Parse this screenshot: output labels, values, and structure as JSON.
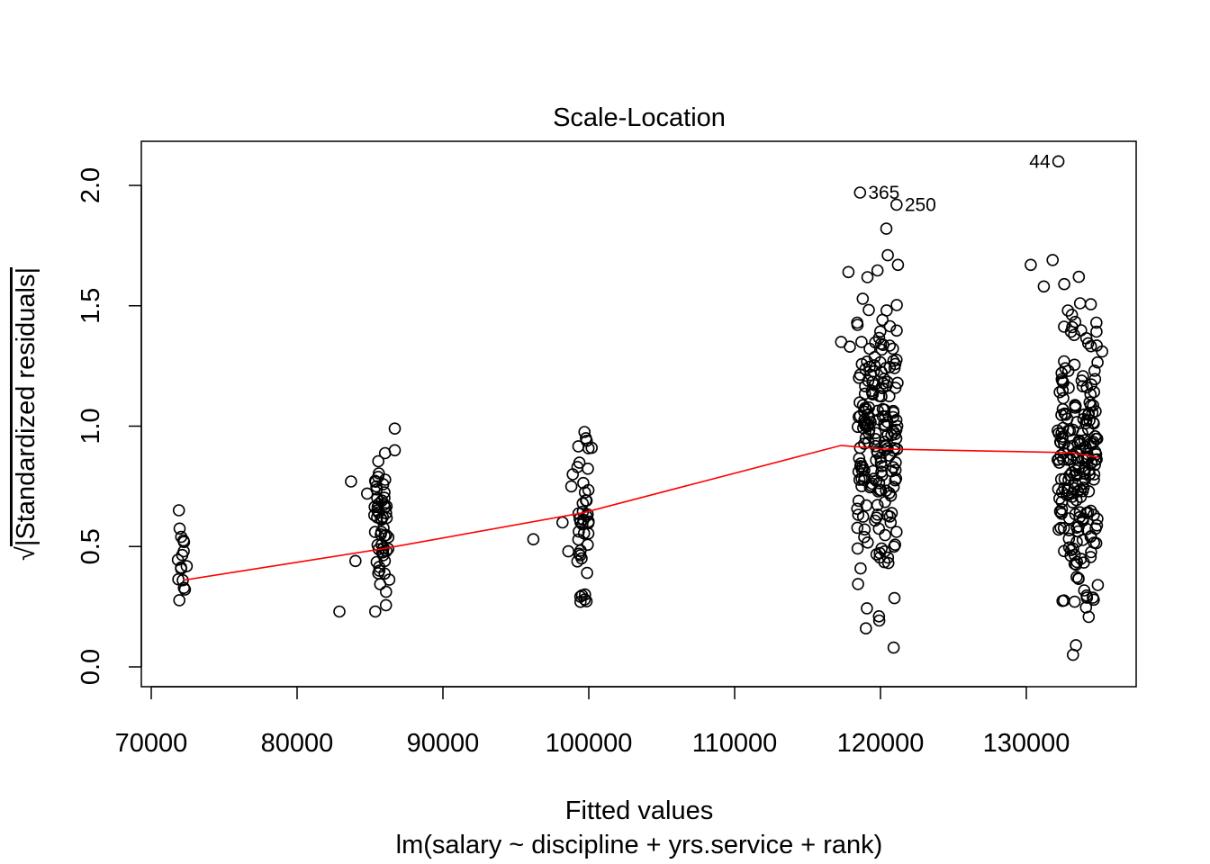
{
  "chart_data": {
    "type": "scatter",
    "title": "Scale-Location",
    "xlabel": "Fitted values",
    "subtitle": "lm(salary ~ discipline + yrs.service + rank)",
    "ylabel": "√|Standardized residuals|",
    "ylabel_radical": "√",
    "ylabel_text": "|Standardized residuals|",
    "xlim": [
      70000,
      137000
    ],
    "ylim": [
      0.0,
      2.1
    ],
    "x_ticks": [
      "70000",
      "80000",
      "90000",
      "100000",
      "110000",
      "120000",
      "130000"
    ],
    "y_ticks": [
      "0.0",
      "0.5",
      "1.0",
      "1.5",
      "2.0"
    ],
    "grid": false,
    "colors": {
      "points": "#000000",
      "smooth": "#ff0000"
    },
    "smooth_line": {
      "x": [
        72200,
        85800,
        99600,
        117300,
        120200,
        133000,
        135000
      ],
      "y": [
        0.36,
        0.49,
        0.64,
        0.92,
        0.905,
        0.89,
        0.87
      ]
    },
    "labeled_points": [
      {
        "label": "44",
        "x": 132200,
        "y": 2.1
      },
      {
        "label": "365",
        "x": 118600,
        "y": 1.97
      },
      {
        "label": "250",
        "x": 121100,
        "y": 1.92
      }
    ],
    "clusters": [
      {
        "x_center": 72100,
        "x_spread": 350,
        "n": 16,
        "y_range": [
          0.1,
          0.76
        ]
      },
      {
        "x_center": 85800,
        "x_spread": 550,
        "n": 58,
        "y_range": [
          0.12,
          1.0
        ]
      },
      {
        "x_center": 99600,
        "x_spread": 400,
        "n": 40,
        "y_range": [
          0.11,
          1.13
        ]
      },
      {
        "x_center": 119800,
        "x_spread": 1400,
        "n": 190,
        "y_range": [
          0.07,
          1.82
        ]
      },
      {
        "x_center": 133500,
        "x_spread": 1400,
        "n": 210,
        "y_range": [
          0.05,
          1.69
        ]
      }
    ],
    "extra_points": [
      {
        "x": 96200,
        "y": 0.53
      },
      {
        "x": 98200,
        "y": 0.6
      },
      {
        "x": 98600,
        "y": 0.48
      },
      {
        "x": 98800,
        "y": 0.75
      },
      {
        "x": 98900,
        "y": 0.8
      },
      {
        "x": 100200,
        "y": 0.91
      },
      {
        "x": 99800,
        "y": 0.95
      },
      {
        "x": 82900,
        "y": 0.23
      },
      {
        "x": 83700,
        "y": 0.77
      },
      {
        "x": 84000,
        "y": 0.44
      },
      {
        "x": 84800,
        "y": 0.72
      },
      {
        "x": 86700,
        "y": 0.99
      },
      {
        "x": 86700,
        "y": 0.9
      },
      {
        "x": 117300,
        "y": 1.35
      },
      {
        "x": 117800,
        "y": 1.64
      },
      {
        "x": 117900,
        "y": 1.33
      },
      {
        "x": 118400,
        "y": 1.43
      },
      {
        "x": 118700,
        "y": 1.35
      },
      {
        "x": 130300,
        "y": 1.67
      },
      {
        "x": 131200,
        "y": 1.58
      },
      {
        "x": 131800,
        "y": 1.69
      },
      {
        "x": 132600,
        "y": 1.59
      },
      {
        "x": 133600,
        "y": 1.62
      },
      {
        "x": 134800,
        "y": 1.43
      },
      {
        "x": 135200,
        "y": 1.31
      },
      {
        "x": 121200,
        "y": 1.67
      },
      {
        "x": 120400,
        "y": 1.82
      },
      {
        "x": 120500,
        "y": 1.71
      },
      {
        "x": 120900,
        "y": 0.08
      },
      {
        "x": 133200,
        "y": 0.05
      },
      {
        "x": 133400,
        "y": 0.09
      },
      {
        "x": 119000,
        "y": 0.16
      },
      {
        "x": 118500,
        "y": 0.69
      },
      {
        "x": 134900,
        "y": 0.34
      }
    ]
  }
}
